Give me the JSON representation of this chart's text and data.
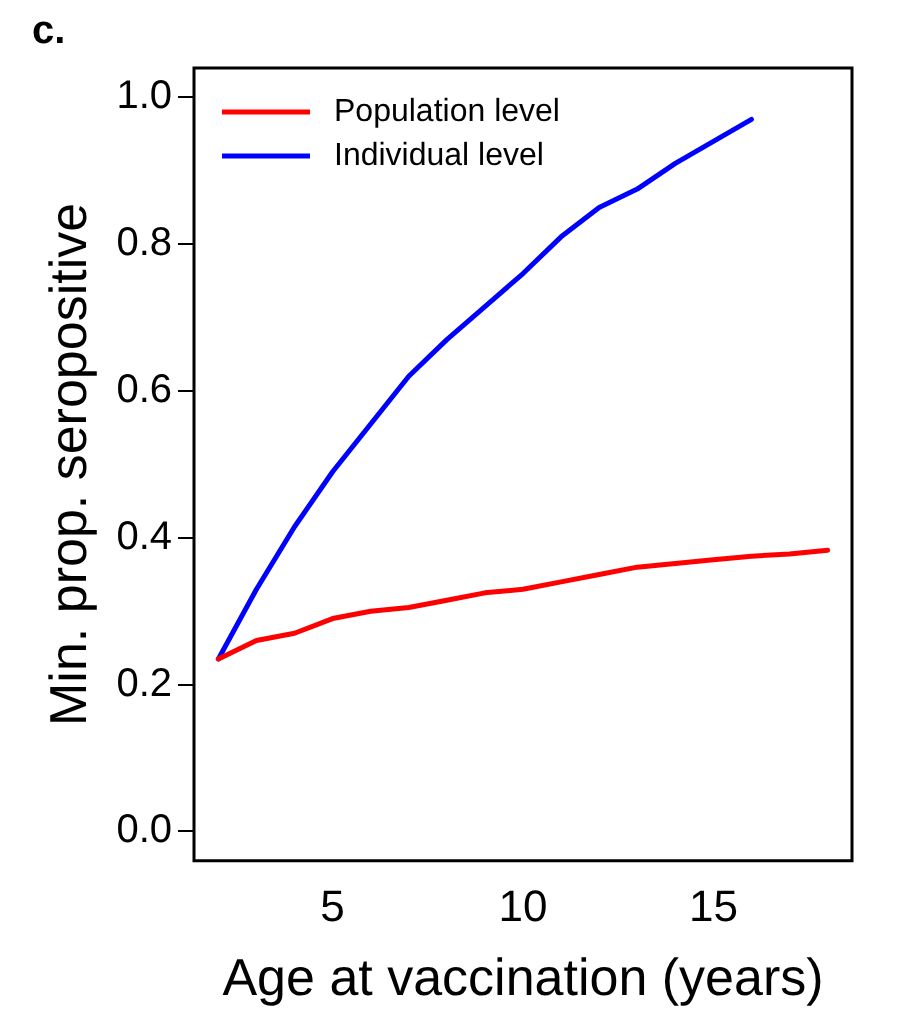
{
  "chart_data": {
    "type": "line",
    "title": "c.",
    "xlabel": "Age at vaccination (years)",
    "ylabel": "Min. prop. seropositive",
    "x": [
      2,
      3,
      4,
      5,
      6,
      7,
      8,
      9,
      10,
      11,
      12,
      13,
      14,
      15,
      16,
      17,
      18
    ],
    "series": [
      {
        "name": "Population level",
        "color": "#ff0000",
        "values": [
          0.235,
          0.26,
          0.27,
          0.29,
          0.3,
          0.305,
          0.315,
          0.325,
          0.33,
          0.34,
          0.35,
          0.36,
          0.365,
          0.37,
          0.375,
          0.378,
          0.383
        ]
      },
      {
        "name": "Individual level",
        "color": "#0000ff",
        "values": [
          0.235,
          0.33,
          0.415,
          0.49,
          0.555,
          0.62,
          0.67,
          0.715,
          0.76,
          0.81,
          0.85,
          0.875,
          0.91,
          0.94,
          0.97,
          null,
          null
        ]
      }
    ],
    "xlim": [
      1.36,
      18.64
    ],
    "xticks": [
      5,
      10,
      15
    ],
    "ylim": [
      -0.04,
      1.04
    ],
    "yticks": [
      {
        "value": 0,
        "label": "0.0"
      },
      {
        "value": 0.2,
        "label": "0.2"
      },
      {
        "value": 0.4,
        "label": "0.4"
      },
      {
        "value": 0.6,
        "label": "0.6"
      },
      {
        "value": 0.8,
        "label": "0.8"
      },
      {
        "value": 1,
        "label": "1.0"
      }
    ],
    "grid": false,
    "legend": "top left",
    "marker": "none",
    "line_style": "solid"
  }
}
